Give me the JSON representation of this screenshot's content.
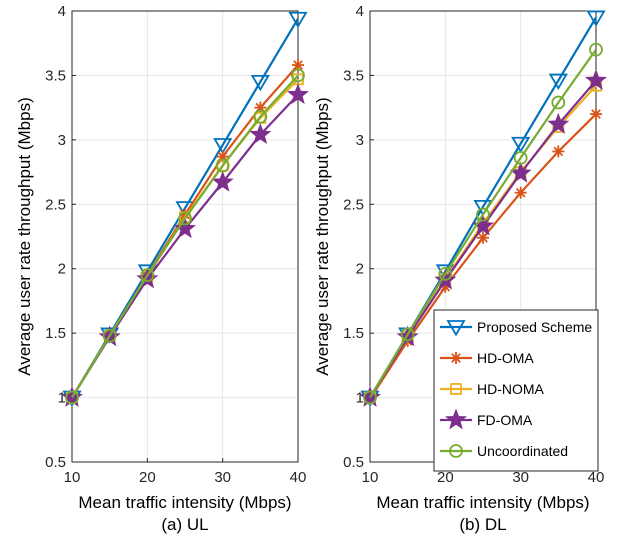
{
  "colors": {
    "proposed": "#0072BD",
    "hd_oma": "#D95319",
    "hd_noma": "#EDB120",
    "fd_oma": "#7E2F8E",
    "uncoordinated": "#77AC30",
    "grid": "#e6e6e6",
    "axis": "#262626"
  },
  "chart_data": [
    {
      "type": "line",
      "caption": "(a) UL",
      "xlabel": "Mean traffic intensity (Mbps)",
      "ylabel": "Average user rate throughput (Mbps)",
      "xlim": [
        10,
        40
      ],
      "ylim": [
        0.5,
        4
      ],
      "xticks": [
        "10",
        "20",
        "30",
        "40"
      ],
      "yticks": [
        "0.5",
        "1",
        "1.5",
        "2",
        "2.5",
        "3",
        "3.5",
        "4"
      ],
      "grid": true,
      "x": [
        10,
        15,
        20,
        25,
        30,
        35,
        40
      ],
      "series": [
        {
          "name": "Proposed Scheme",
          "marker": "triangle-down",
          "color_key": "proposed",
          "values": [
            1.0,
            1.49,
            1.98,
            2.47,
            2.96,
            3.45,
            3.94
          ]
        },
        {
          "name": "HD-OMA",
          "marker": "asterisk",
          "color_key": "hd_oma",
          "values": [
            1.0,
            1.48,
            1.95,
            2.42,
            2.87,
            3.25,
            3.58
          ]
        },
        {
          "name": "HD-NOMA",
          "marker": "square",
          "color_key": "hd_noma",
          "values": [
            1.0,
            1.48,
            1.94,
            2.4,
            2.8,
            3.17,
            3.47
          ]
        },
        {
          "name": "FD-OMA",
          "marker": "pentagram",
          "color_key": "fd_oma",
          "values": [
            1.0,
            1.47,
            1.92,
            2.31,
            2.67,
            3.04,
            3.35
          ]
        },
        {
          "name": "Uncoordinated",
          "marker": "circle",
          "color_key": "uncoordinated",
          "values": [
            1.0,
            1.48,
            1.95,
            2.39,
            2.8,
            3.18,
            3.5
          ]
        }
      ]
    },
    {
      "type": "line",
      "caption": "(b) DL",
      "xlabel": "Mean traffic intensity (Mbps)",
      "ylabel": "Average user rate throughput (Mbps)",
      "xlim": [
        10,
        40
      ],
      "ylim": [
        0.5,
        4
      ],
      "xticks": [
        "10",
        "20",
        "30",
        "40"
      ],
      "yticks": [
        "0.5",
        "1",
        "1.5",
        "2",
        "2.5",
        "3",
        "3.5",
        "4"
      ],
      "grid": true,
      "legend": "lower-right",
      "x": [
        10,
        15,
        20,
        25,
        30,
        35,
        40
      ],
      "series": [
        {
          "name": "Proposed Scheme",
          "marker": "triangle-down",
          "color_key": "proposed",
          "values": [
            1.0,
            1.49,
            1.98,
            2.48,
            2.97,
            3.46,
            3.95
          ]
        },
        {
          "name": "HD-OMA",
          "marker": "asterisk",
          "color_key": "hd_oma",
          "values": [
            0.99,
            1.44,
            1.86,
            2.24,
            2.59,
            2.91,
            3.2
          ]
        },
        {
          "name": "HD-NOMA",
          "marker": "square",
          "color_key": "hd_noma",
          "values": [
            1.0,
            1.47,
            1.92,
            2.35,
            2.75,
            3.1,
            3.42
          ]
        },
        {
          "name": "FD-OMA",
          "marker": "pentagram",
          "color_key": "fd_oma",
          "values": [
            1.0,
            1.47,
            1.91,
            2.33,
            2.74,
            3.12,
            3.46
          ]
        },
        {
          "name": "Uncoordinated",
          "marker": "circle",
          "color_key": "uncoordinated",
          "values": [
            1.0,
            1.49,
            1.96,
            2.42,
            2.86,
            3.29,
            3.7
          ]
        }
      ]
    }
  ]
}
